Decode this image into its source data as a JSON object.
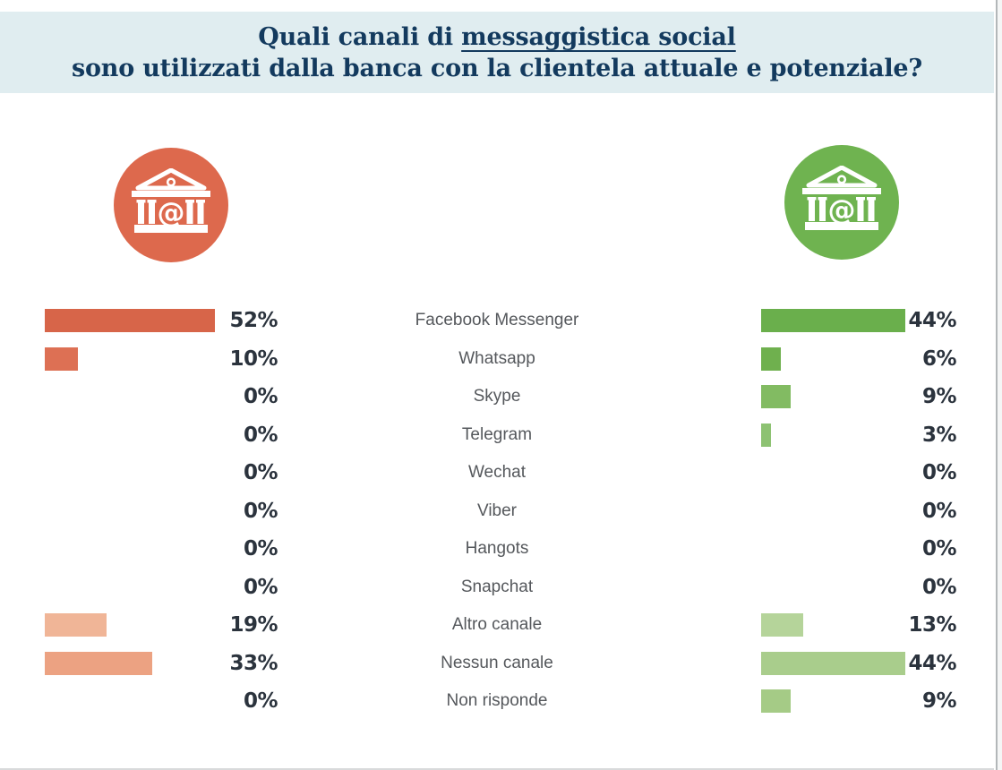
{
  "page": {
    "background": "#ffffff",
    "edge_line_color": "#b3b7b9",
    "bottom_line_color": "#d8dadb"
  },
  "header": {
    "background": "#e0edf0",
    "text_color": "#133a5e",
    "line1_prefix": "Quali canali di ",
    "line1_underlined": "messaggistica social",
    "line2": "sono utilizzati dalla banca con la clientela attuale e potenziale?"
  },
  "icons": {
    "left_bank_circle_color": "#dd694d",
    "right_bank_circle_color": "#6fb350",
    "glyph": "bank-building-with-at-icon",
    "at_symbol": "@"
  },
  "chart_data": {
    "type": "bar",
    "orientation": "horizontal",
    "layout": "two-sided-comparison",
    "title": "Quali canali di messaggistica social sono utilizzati dalla banca con la clientela attuale e potenziale?",
    "value_unit": "%",
    "xlim": [
      0,
      52
    ],
    "grid": false,
    "legend": "none (sides identified by orange and green bank icons)",
    "categories": [
      "Facebook Messenger",
      "Whatsapp",
      "Skype",
      "Telegram",
      "Wechat",
      "Viber",
      "Hangots",
      "Snapchat",
      "Altro canale",
      "Nessun canale",
      "Non risponde"
    ],
    "series": [
      {
        "name": "left-orange-bank",
        "values": [
          52,
          10,
          0,
          0,
          0,
          0,
          0,
          0,
          19,
          33,
          0
        ],
        "value_labels": [
          "52%",
          "10%",
          "0%",
          "0%",
          "0%",
          "0%",
          "0%",
          "0%",
          "19%",
          "33%",
          "0%"
        ],
        "bar_colors": [
          "#d76549",
          "#dd7054",
          "",
          "",
          "",
          "",
          "",
          "",
          "#f0b597",
          "#eca282",
          ""
        ]
      },
      {
        "name": "right-green-bank",
        "values": [
          44,
          6,
          9,
          3,
          0,
          0,
          0,
          0,
          13,
          44,
          9
        ],
        "value_labels": [
          "44%",
          "6%",
          "9%",
          "3%",
          "0%",
          "0%",
          "0%",
          "0%",
          "13%",
          "44%",
          "9%"
        ],
        "bar_colors": [
          "#6aaf4c",
          "#6fb04e",
          "#82bb62",
          "#8dc272",
          "",
          "",
          "",
          "",
          "#b5d49a",
          "#a9cd8c",
          "#a5cb86"
        ]
      }
    ],
    "label_color": "#55585c",
    "percent_color": "#2b333d"
  }
}
